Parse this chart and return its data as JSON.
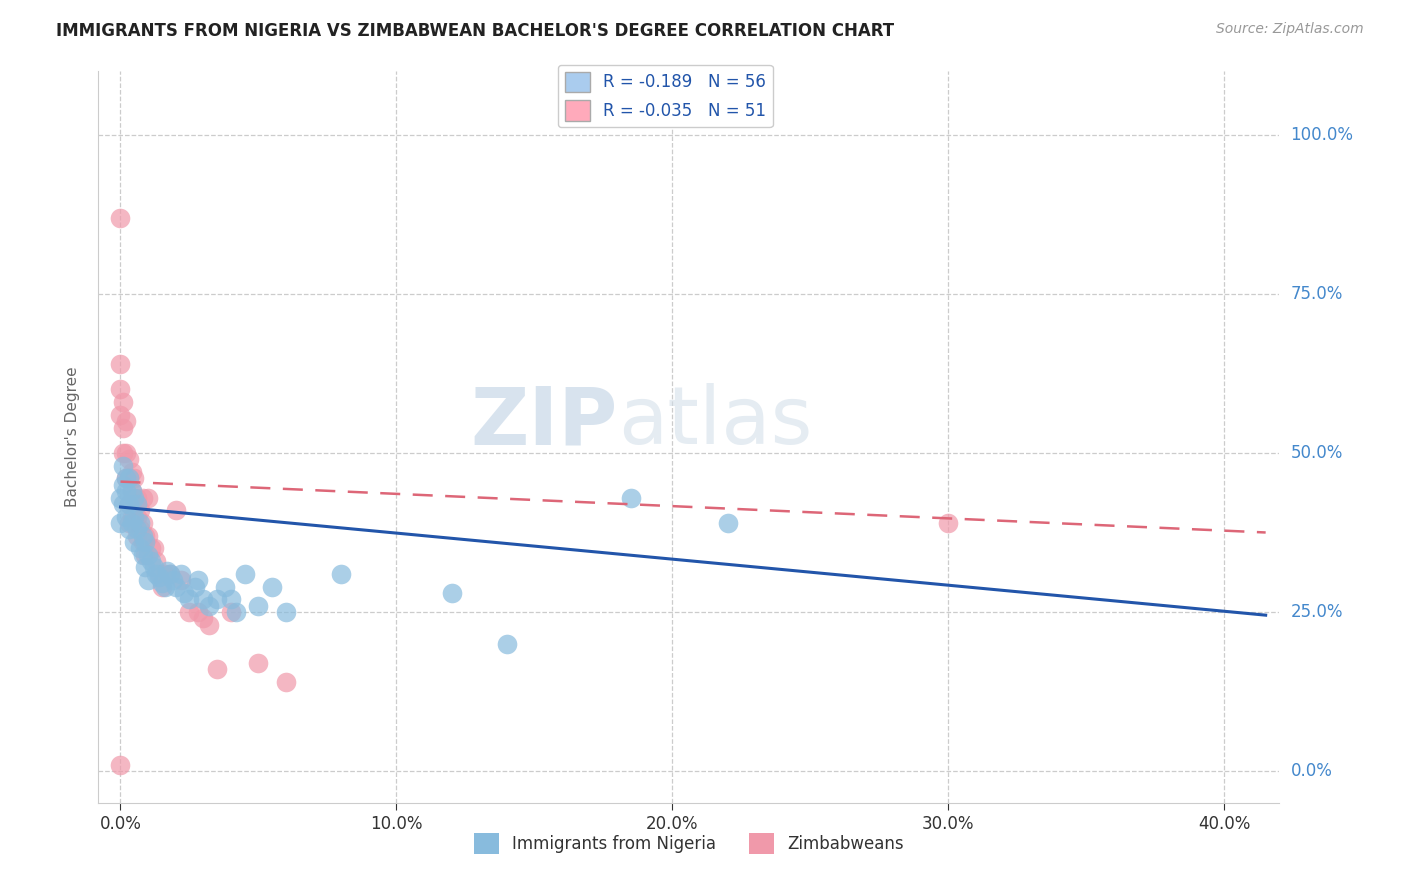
{
  "title": "IMMIGRANTS FROM NIGERIA VS ZIMBABWEAN BACHELOR'S DEGREE CORRELATION CHART",
  "source": "Source: ZipAtlas.com",
  "xlabel_vals": [
    0.0,
    0.1,
    0.2,
    0.3,
    0.4
  ],
  "ylabel_vals": [
    0.0,
    0.25,
    0.5,
    0.75,
    1.0
  ],
  "xlim": [
    -0.008,
    0.42
  ],
  "ylim": [
    -0.05,
    1.1
  ],
  "ylabel": "Bachelor's Degree",
  "nigeria_color": "#88bbdd",
  "zimbabwe_color": "#f099aa",
  "nigeria_line_color": "#2255aa",
  "zimbabwe_line_color": "#dd6677",
  "watermark_zip": "ZIP",
  "watermark_atlas": "atlas",
  "legend_label_1": "R = -0.189   N = 56",
  "legend_label_2": "R = -0.035   N = 51",
  "legend_color_1": "#aaccee",
  "legend_color_2": "#ffaabb",
  "bottom_label_1": "Immigrants from Nigeria",
  "bottom_label_2": "Zimbabweans",
  "nigeria_dots_x": [
    0.0,
    0.0,
    0.001,
    0.001,
    0.001,
    0.002,
    0.002,
    0.002,
    0.003,
    0.003,
    0.003,
    0.004,
    0.004,
    0.005,
    0.005,
    0.005,
    0.006,
    0.006,
    0.007,
    0.007,
    0.008,
    0.008,
    0.009,
    0.009,
    0.01,
    0.01,
    0.011,
    0.012,
    0.013,
    0.014,
    0.015,
    0.016,
    0.017,
    0.018,
    0.019,
    0.02,
    0.022,
    0.023,
    0.025,
    0.027,
    0.028,
    0.03,
    0.032,
    0.035,
    0.038,
    0.04,
    0.042,
    0.045,
    0.05,
    0.055,
    0.06,
    0.08,
    0.12,
    0.14,
    0.185,
    0.22
  ],
  "nigeria_dots_y": [
    0.43,
    0.39,
    0.42,
    0.45,
    0.48,
    0.4,
    0.44,
    0.46,
    0.38,
    0.42,
    0.46,
    0.39,
    0.44,
    0.36,
    0.4,
    0.43,
    0.38,
    0.42,
    0.35,
    0.39,
    0.34,
    0.37,
    0.32,
    0.36,
    0.3,
    0.34,
    0.33,
    0.32,
    0.31,
    0.305,
    0.295,
    0.29,
    0.315,
    0.31,
    0.3,
    0.29,
    0.31,
    0.28,
    0.27,
    0.29,
    0.3,
    0.27,
    0.26,
    0.27,
    0.29,
    0.27,
    0.25,
    0.31,
    0.26,
    0.29,
    0.25,
    0.31,
    0.28,
    0.2,
    0.43,
    0.39
  ],
  "zimbabwe_dots_x": [
    0.0,
    0.0,
    0.0,
    0.0,
    0.001,
    0.001,
    0.001,
    0.002,
    0.002,
    0.002,
    0.003,
    0.003,
    0.003,
    0.003,
    0.004,
    0.004,
    0.004,
    0.005,
    0.005,
    0.005,
    0.006,
    0.006,
    0.006,
    0.007,
    0.007,
    0.008,
    0.008,
    0.008,
    0.009,
    0.009,
    0.01,
    0.01,
    0.011,
    0.012,
    0.013,
    0.014,
    0.015,
    0.016,
    0.018,
    0.02,
    0.022,
    0.025,
    0.028,
    0.03,
    0.032,
    0.035,
    0.04,
    0.05,
    0.06,
    0.3,
    0.0
  ],
  "zimbabwe_dots_y": [
    0.87,
    0.64,
    0.6,
    0.56,
    0.58,
    0.54,
    0.5,
    0.55,
    0.5,
    0.46,
    0.49,
    0.46,
    0.42,
    0.39,
    0.47,
    0.44,
    0.4,
    0.46,
    0.42,
    0.39,
    0.43,
    0.4,
    0.37,
    0.41,
    0.38,
    0.39,
    0.36,
    0.43,
    0.37,
    0.34,
    0.37,
    0.43,
    0.35,
    0.35,
    0.33,
    0.31,
    0.29,
    0.31,
    0.31,
    0.41,
    0.3,
    0.25,
    0.25,
    0.24,
    0.23,
    0.16,
    0.25,
    0.17,
    0.14,
    0.39,
    0.01
  ],
  "nig_line_x0": 0.0,
  "nig_line_y0": 0.415,
  "nig_line_x1": 0.415,
  "nig_line_y1": 0.245,
  "zim_line_x0": 0.0,
  "zim_line_y0": 0.455,
  "zim_line_x1": 0.415,
  "zim_line_y1": 0.375
}
